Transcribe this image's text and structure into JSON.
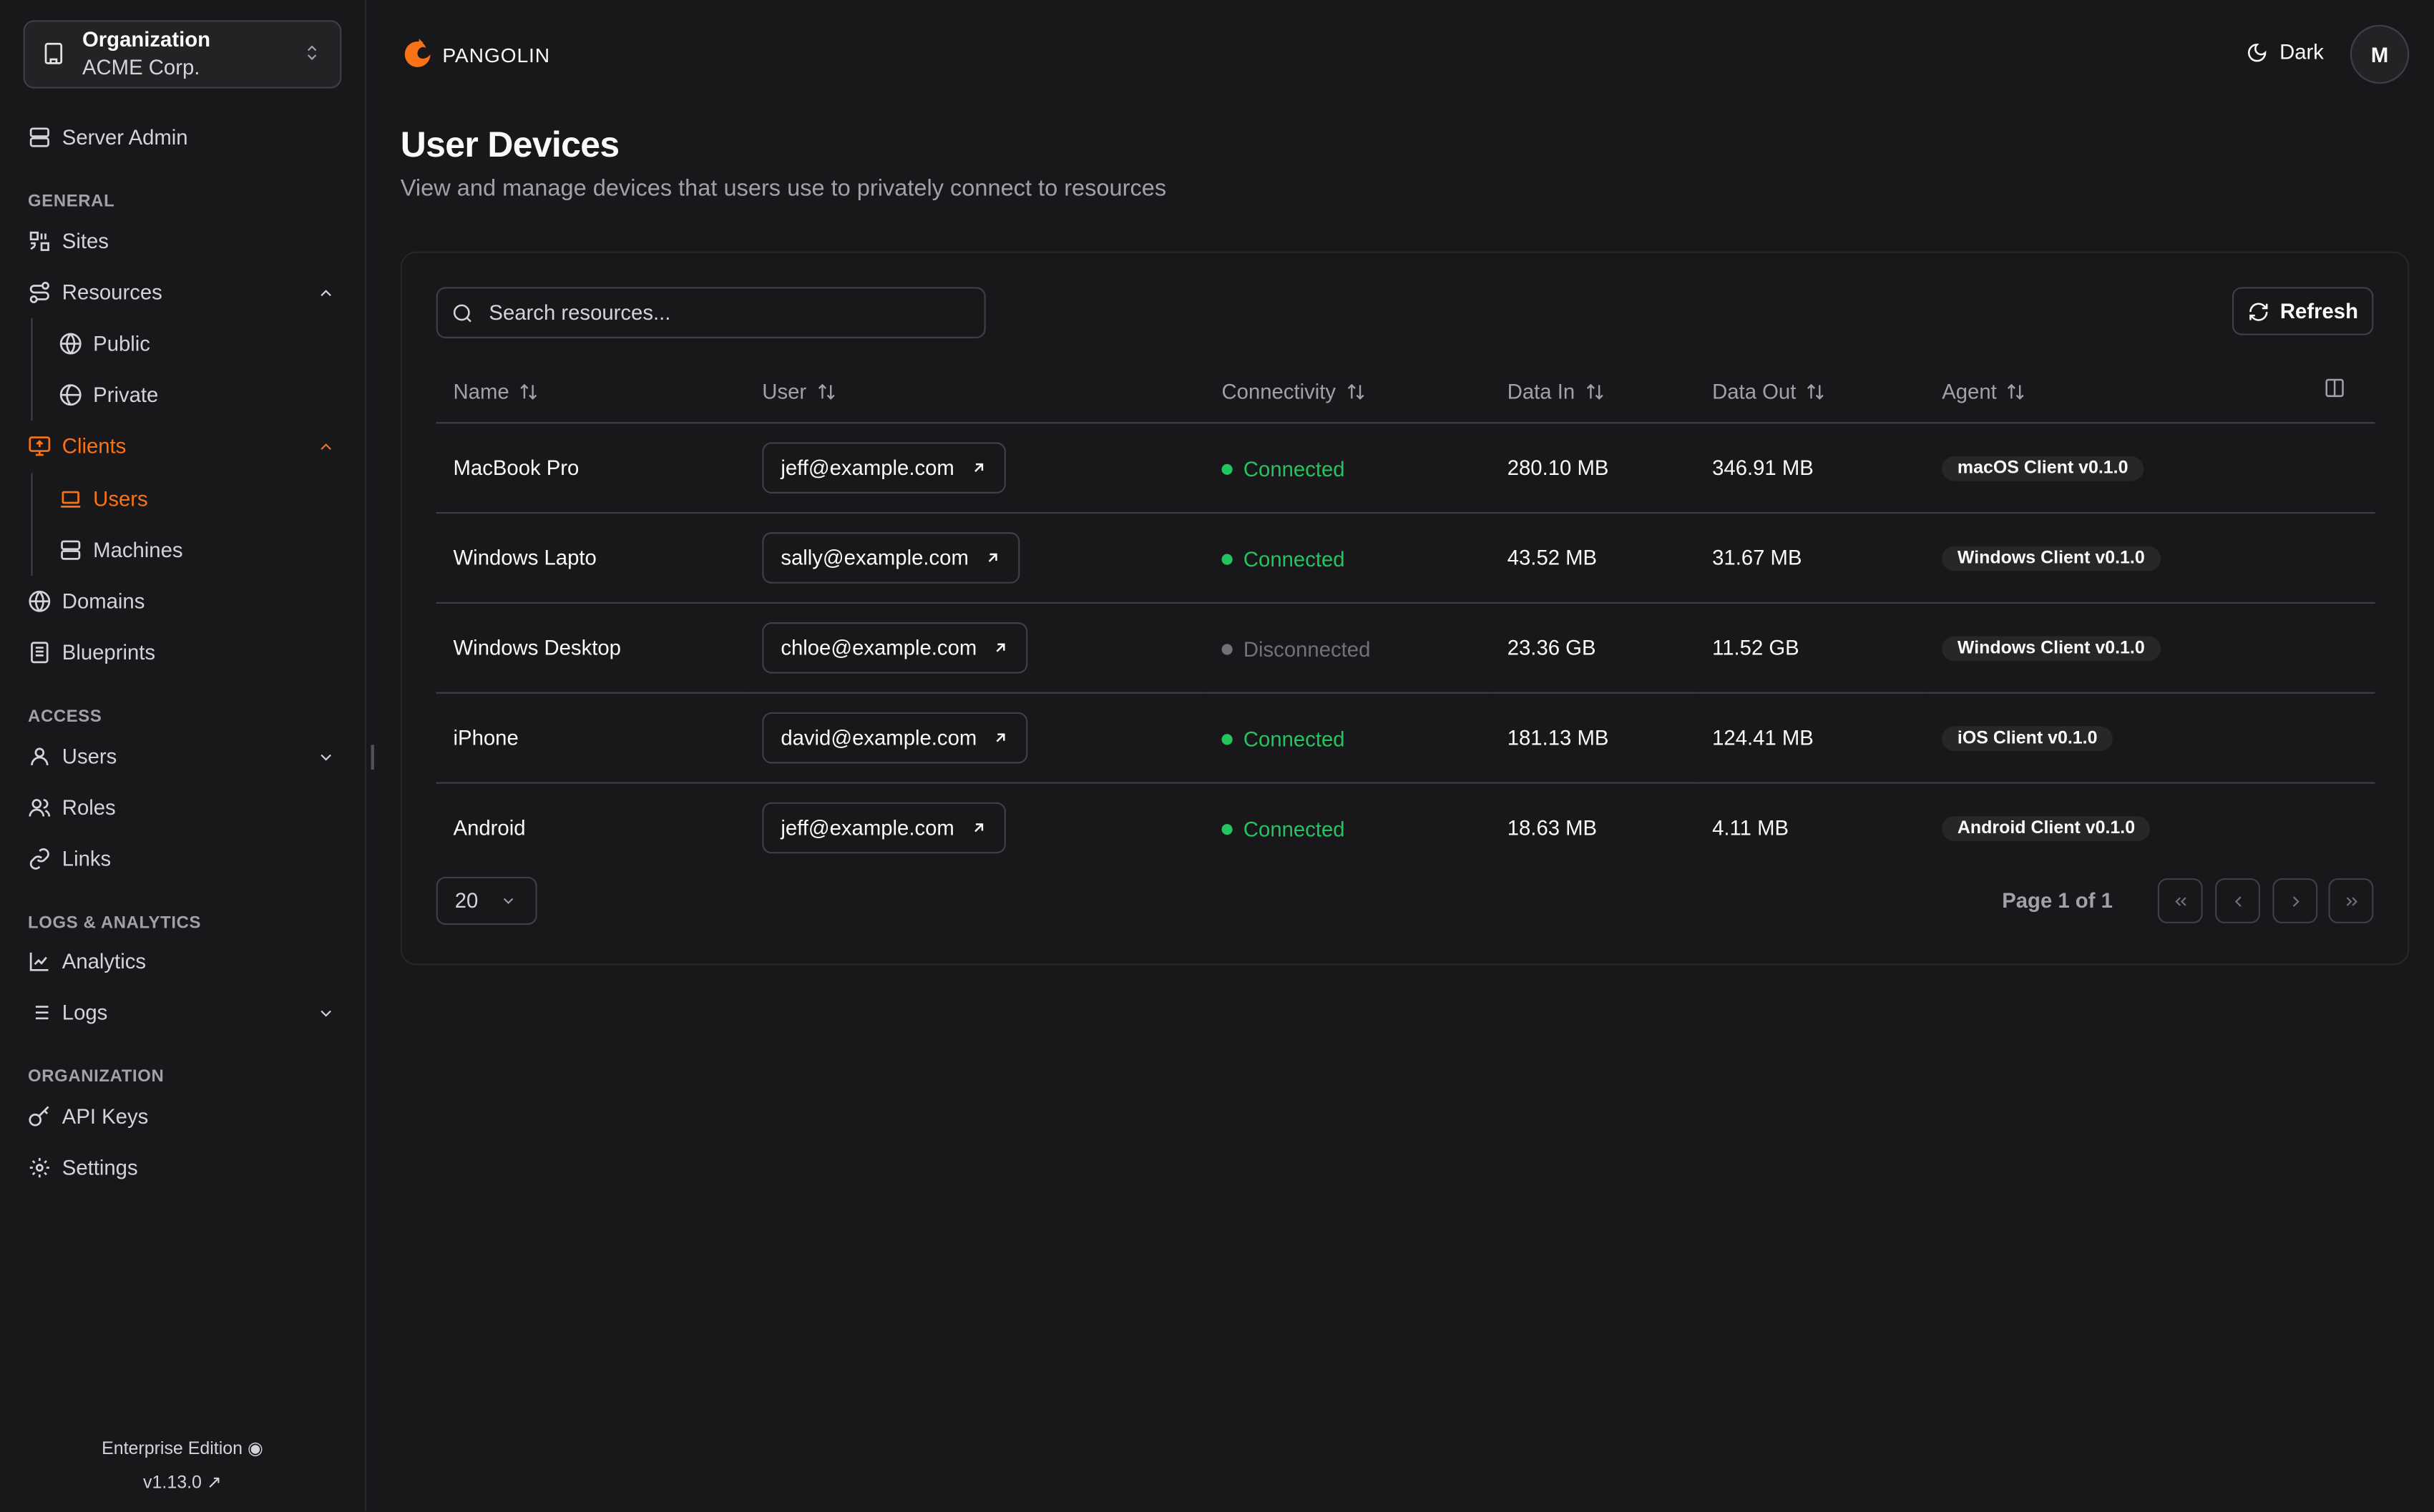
{
  "org": {
    "label": "Organization",
    "name": "ACME Corp."
  },
  "sidebar": {
    "server_admin": "Server Admin",
    "sections": {
      "general": "GENERAL",
      "access": "ACCESS",
      "logs": "LOGS & ANALYTICS",
      "organization": "ORGANIZATION"
    },
    "items": {
      "sites": "Sites",
      "resources": "Resources",
      "public": "Public",
      "private": "Private",
      "clients": "Clients",
      "users": "Users",
      "machines": "Machines",
      "domains": "Domains",
      "blueprints": "Blueprints",
      "access_users": "Users",
      "roles": "Roles",
      "links": "Links",
      "analytics": "Analytics",
      "logs": "Logs",
      "api_keys": "API Keys",
      "settings": "Settings"
    },
    "edition": "Enterprise Edition",
    "version": "v1.13.0"
  },
  "header": {
    "brand": "PANGOLIN",
    "theme": "Dark",
    "avatar": "M"
  },
  "page": {
    "title": "User Devices",
    "subtitle": "View and manage devices that users use to privately connect to resources"
  },
  "toolbar": {
    "search_placeholder": "Search resources...",
    "refresh": "Refresh"
  },
  "table": {
    "columns": [
      "Name",
      "User",
      "Connectivity",
      "Data In",
      "Data Out",
      "Agent"
    ],
    "rows": [
      {
        "name": "MacBook Pro",
        "user": "jeff@example.com",
        "status": "Connected",
        "data_in": "280.10 MB",
        "data_out": "346.91 MB",
        "agent": "macOS Client v0.1.0"
      },
      {
        "name": "Windows Lapto",
        "user": "sally@example.com",
        "status": "Connected",
        "data_in": "43.52 MB",
        "data_out": "31.67 MB",
        "agent": "Windows Client v0.1.0"
      },
      {
        "name": "Windows Desktop",
        "user": "chloe@example.com",
        "status": "Disconnected",
        "data_in": "23.36 GB",
        "data_out": "11.52 GB",
        "agent": "Windows Client v0.1.0"
      },
      {
        "name": "iPhone",
        "user": "david@example.com",
        "status": "Connected",
        "data_in": "181.13 MB",
        "data_out": "124.41 MB",
        "agent": "iOS Client v0.1.0"
      },
      {
        "name": "Android",
        "user": "jeff@example.com",
        "status": "Connected",
        "data_in": "18.63 MB",
        "data_out": "4.11 MB",
        "agent": "Android Client v0.1.0"
      }
    ]
  },
  "pagination": {
    "page_size": "20",
    "info": "Page 1 of 1"
  },
  "colors": {
    "accent": "#f97316",
    "connected": "#22c55e",
    "disconnected": "#71717a"
  }
}
